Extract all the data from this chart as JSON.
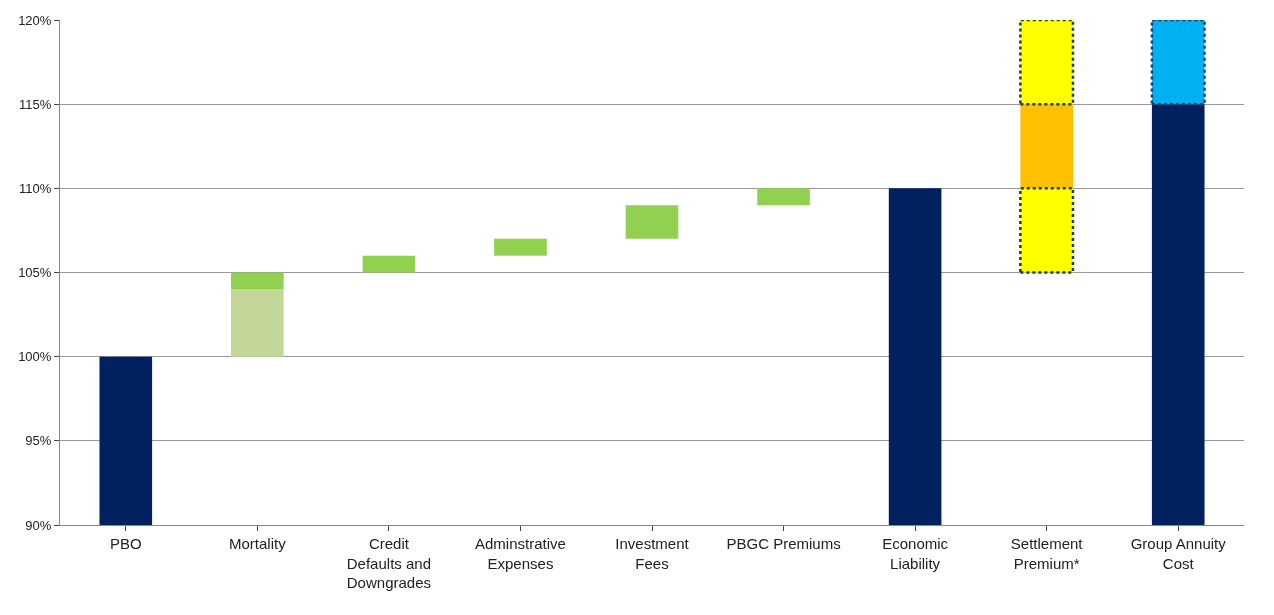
{
  "chart_data": {
    "type": "bar",
    "categories": [
      "PBO",
      "Mortality",
      "Credit Defaults and Downgrades",
      "Adminstrative Expenses",
      "Investment Fees",
      "PBGC Premiums",
      "Economic Liability",
      "Settlement Premium*",
      "Group Annuity Cost"
    ],
    "series": [
      {
        "color": "#002060",
        "values": [
          10,
          null,
          null,
          null,
          null,
          null,
          20,
          null,
          25
        ],
        "base": [
          90,
          null,
          null,
          null,
          null,
          null,
          90,
          null,
          90
        ]
      },
      {
        "color": "#c4d79b",
        "values": [
          null,
          4,
          null,
          null,
          null,
          null,
          null,
          null,
          null
        ],
        "base": [
          null,
          100,
          null,
          null,
          null,
          null,
          null,
          null,
          null
        ]
      },
      {
        "color": "#92d050",
        "values": [
          null,
          1,
          1,
          1,
          2,
          1,
          null,
          null,
          null
        ],
        "base": [
          null,
          104,
          105,
          106,
          107,
          109,
          null,
          null,
          null
        ]
      },
      {
        "color": "#ffff00",
        "line_style": "dotted",
        "values": [
          null,
          null,
          null,
          null,
          null,
          null,
          null,
          5,
          null
        ],
        "base": [
          null,
          null,
          null,
          null,
          null,
          null,
          null,
          105,
          null
        ]
      },
      {
        "color": "#ffc000",
        "values": [
          null,
          null,
          null,
          null,
          null,
          null,
          null,
          5,
          null
        ],
        "base": [
          null,
          null,
          null,
          null,
          null,
          null,
          null,
          110,
          null
        ]
      },
      {
        "color": "#ffff00",
        "line_style": "dotted",
        "values": [
          null,
          null,
          null,
          null,
          null,
          null,
          null,
          5,
          null
        ],
        "base": [
          null,
          null,
          null,
          null,
          null,
          null,
          null,
          115,
          null
        ]
      },
      {
        "color": "#00b0f0",
        "line_style": "dotted",
        "values": [
          null,
          null,
          null,
          null,
          null,
          null,
          null,
          null,
          5
        ],
        "base": [
          null,
          null,
          null,
          null,
          null,
          null,
          null,
          null,
          115
        ]
      }
    ],
    "ylim": [
      90,
      120
    ],
    "yticks": [
      {
        "value": 90,
        "label": "90%"
      },
      {
        "value": 95,
        "label": "95%"
      },
      {
        "value": 100,
        "label": "100%"
      },
      {
        "value": 105,
        "label": "105%"
      },
      {
        "value": 110,
        "label": "110%"
      },
      {
        "value": 115,
        "label": "115%"
      },
      {
        "value": 120,
        "label": "120%"
      }
    ],
    "grid": "y"
  }
}
